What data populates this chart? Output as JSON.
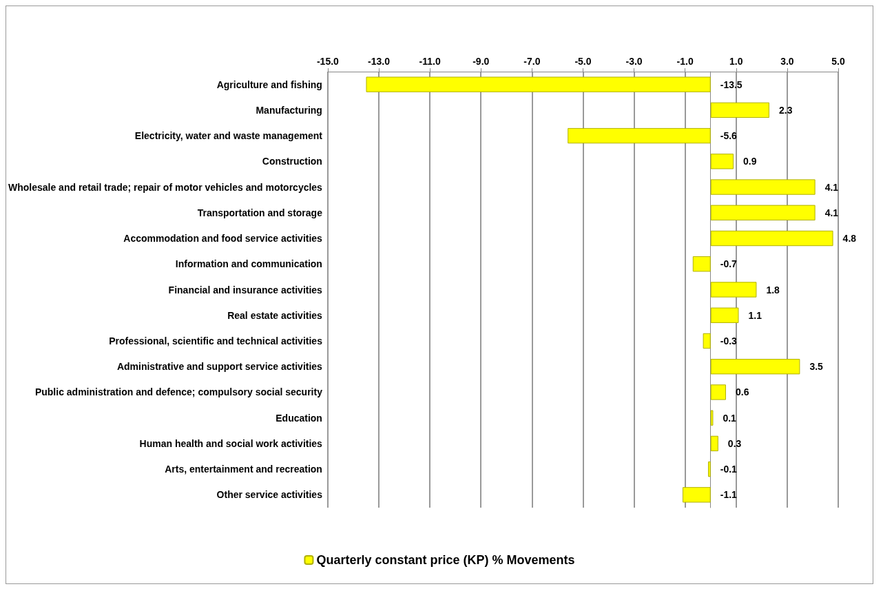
{
  "chart_data": {
    "type": "bar",
    "orientation": "horizontal",
    "categories": [
      "Agriculture and fishing",
      "Manufacturing",
      "Electricity, water and waste management",
      "Construction",
      "Wholesale and retail trade; repair of motor vehicles and motorcycles",
      "Transportation and storage",
      "Accommodation and food service activities",
      "Information and communication",
      "Financial and insurance activities",
      "Real estate activities",
      "Professional, scientific and technical activities",
      "Administrative and support service activities",
      "Public administration and defence; compulsory social security",
      "Education",
      "Human health and social work activities",
      "Arts, entertainment and recreation",
      "Other service activities"
    ],
    "series": [
      {
        "name": "Quarterly constant price (KP) % Movements",
        "color": "#ffff00",
        "values": [
          -13.5,
          2.3,
          -5.6,
          0.9,
          4.1,
          4.1,
          4.8,
          -0.7,
          1.8,
          1.1,
          -0.3,
          3.5,
          0.6,
          0.1,
          0.3,
          -0.1,
          -1.1
        ]
      }
    ],
    "xlim": [
      -15,
      5
    ],
    "xticks": [
      {
        "value": -15,
        "label": "-15.0"
      },
      {
        "value": -13,
        "label": "-13.0"
      },
      {
        "value": -11,
        "label": "-11.0"
      },
      {
        "value": -9,
        "label": "-9.0"
      },
      {
        "value": -7,
        "label": "-7.0"
      },
      {
        "value": -5,
        "label": "-5.0"
      },
      {
        "value": -3,
        "label": "-3.0"
      },
      {
        "value": -1,
        "label": "-1.0"
      },
      {
        "value": 1,
        "label": "1.0"
      },
      {
        "value": 3,
        "label": "3.0"
      },
      {
        "value": 5,
        "label": "5.0"
      }
    ],
    "grid": "x",
    "legend": "bottom",
    "data_labels": true
  }
}
